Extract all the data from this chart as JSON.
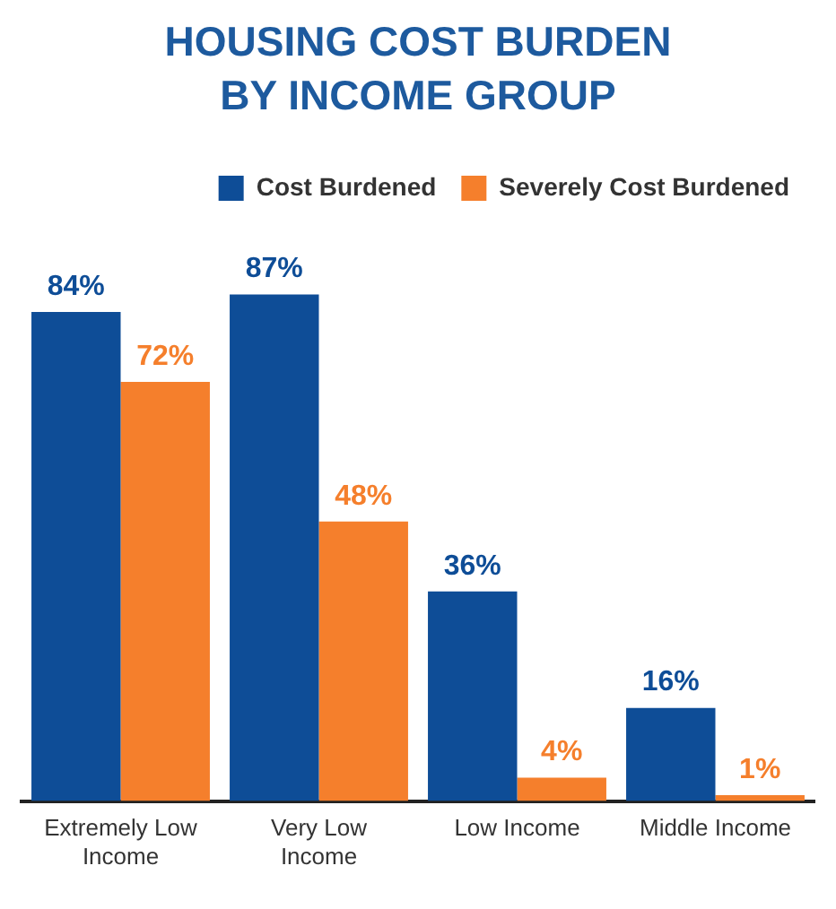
{
  "chart_data": {
    "type": "bar",
    "title": "HOUSING COST BURDEN BY INCOME GROUP",
    "categories": [
      "Extremely Low Income",
      "Very Low Income",
      "Low Income",
      "Middle Income"
    ],
    "series": [
      {
        "name": "Cost Burdened",
        "color": "#0e4d97",
        "values": [
          84,
          87,
          36,
          16
        ],
        "value_labels": [
          "84%",
          "87%",
          "36%",
          "16%"
        ]
      },
      {
        "name": "Severely Cost Burdened",
        "color": "#f57f2c",
        "values": [
          72,
          48,
          4,
          1
        ],
        "value_labels": [
          "72%",
          "48%",
          "4%",
          "1%"
        ]
      }
    ],
    "legend": "top right",
    "grid": false
  }
}
